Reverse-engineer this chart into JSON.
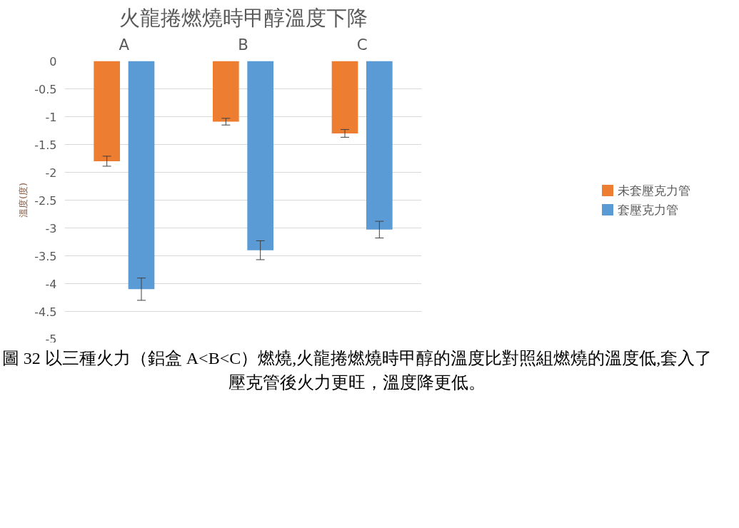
{
  "chart_data": {
    "type": "bar",
    "title": "火龍捲燃燒時甲醇溫度下降",
    "ylabel": "溫度(度)",
    "categories": [
      "A",
      "B",
      "C"
    ],
    "series": [
      {
        "name": "未套壓克力管",
        "color": "#ed7d31",
        "values": [
          -1.8,
          -1.09,
          -1.3
        ],
        "errors": [
          0.09,
          0.06,
          0.07
        ]
      },
      {
        "name": "套壓克力管",
        "color": "#5b9bd5",
        "values": [
          -4.1,
          -3.4,
          -3.03
        ],
        "errors": [
          0.2,
          0.17,
          0.15
        ]
      }
    ],
    "ylim": [
      -5,
      0
    ],
    "yticks": [
      -5,
      -4.5,
      -4,
      -3.5,
      -3,
      -2.5,
      -2,
      -1.5,
      -1,
      -0.5,
      0
    ],
    "grid": "y",
    "legend": "right",
    "annotations": [
      "圖 32 以三種火力（鋁盒 A<B<C）燃燒,火龍捲燃燒時甲醇的溫度比對照組燃燒的溫度低,套入了壓克管後火力更旺，溫度降更低。"
    ]
  }
}
